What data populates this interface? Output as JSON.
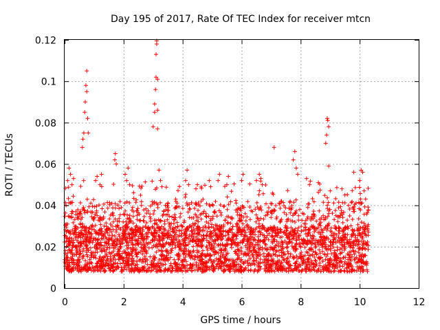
{
  "chart_data": {
    "type": "scatter",
    "title": "Day 195 of 2017, Rate Of TEC Index for receiver mtcn",
    "xlabel": "GPS time / hours",
    "ylabel": "ROTI / TECUs",
    "xlim": [
      0,
      12
    ],
    "ylim": [
      0,
      0.12
    ],
    "xticks": [
      "0",
      "2",
      "4",
      "6",
      "8",
      "10",
      "12"
    ],
    "yticks": [
      "0",
      "0.02",
      "0.04",
      "0.06",
      "0.08",
      "0.1",
      "0.12"
    ],
    "grid": true,
    "marker": "+",
    "color": "#ff0000",
    "time_span_hours": [
      0.0,
      10.3
    ],
    "baseline_band": [
      0.008,
      0.03
    ],
    "series": [
      {
        "name": "ROTI",
        "x": [
          0.05,
          0.1,
          0.15,
          0.2,
          0.25,
          0.3,
          0.6,
          0.62,
          0.65,
          0.68,
          0.7,
          0.72,
          0.75,
          0.75,
          0.78,
          0.8,
          1.05,
          1.1,
          1.2,
          1.25,
          1.7,
          1.72,
          1.75,
          2.05,
          2.1,
          2.15,
          2.2,
          3.0,
          3.05,
          3.05,
          3.08,
          3.1,
          3.1,
          3.12,
          3.12,
          3.15,
          3.15,
          3.15,
          3.2,
          3.25,
          3.3,
          4.1,
          4.15,
          4.2,
          4.45,
          4.5,
          4.9,
          4.95,
          5.2,
          5.25,
          5.5,
          5.55,
          6.0,
          6.05,
          6.5,
          6.6,
          6.65,
          6.7,
          7.1,
          7.75,
          7.8,
          7.85,
          7.9,
          8.2,
          8.3,
          8.6,
          8.85,
          8.88,
          8.9,
          8.92,
          8.95,
          8.95,
          9.0,
          9.4,
          9.5,
          9.8,
          10.0,
          10.05,
          10.1,
          10.15,
          10.2
        ],
        "y": [
          0.04,
          0.052,
          0.058,
          0.055,
          0.05,
          0.053,
          0.068,
          0.072,
          0.075,
          0.085,
          0.09,
          0.098,
          0.105,
          0.095,
          0.082,
          0.075,
          0.052,
          0.054,
          0.05,
          0.055,
          0.062,
          0.065,
          0.06,
          0.055,
          0.052,
          0.058,
          0.05,
          0.078,
          0.085,
          0.089,
          0.096,
          0.102,
          0.113,
          0.118,
          0.1195,
          0.101,
          0.086,
          0.077,
          0.057,
          0.052,
          0.049,
          0.052,
          0.057,
          0.05,
          0.048,
          0.05,
          0.052,
          0.049,
          0.052,
          0.055,
          0.05,
          0.054,
          0.052,
          0.055,
          0.052,
          0.055,
          0.053,
          0.05,
          0.068,
          0.062,
          0.066,
          0.058,
          0.055,
          0.053,
          0.05,
          0.051,
          0.07,
          0.074,
          0.082,
          0.081,
          0.078,
          0.059,
          0.047,
          0.048,
          0.045,
          0.056,
          0.052,
          0.057,
          0.056,
          0.047,
          0.043
        ]
      }
    ]
  }
}
